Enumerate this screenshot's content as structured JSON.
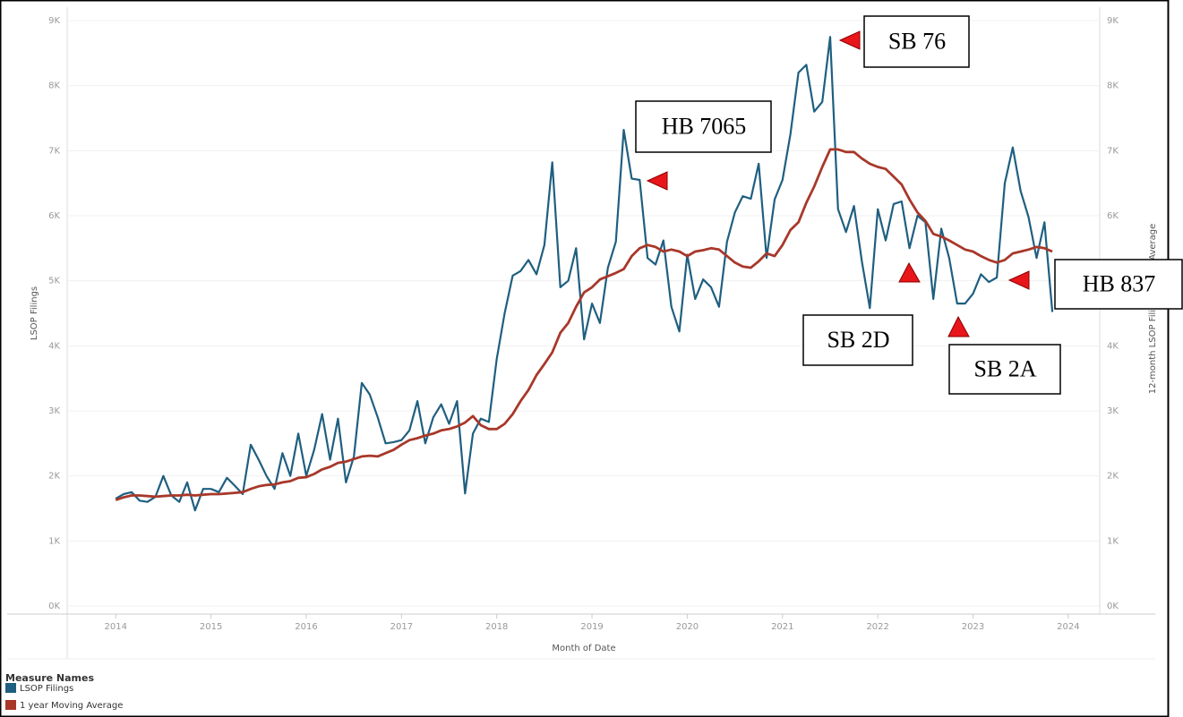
{
  "chart_data": {
    "type": "line",
    "y_label": "LSOP Filings",
    "y2_label": "12-month LSOP Filing Moving Average",
    "x_label": "Month of Date",
    "legend_title": "Measure Names",
    "legend": "bottom-left",
    "grid": true,
    "xlim": [
      2013.49,
      2024.33
    ],
    "xticks": [
      2014,
      2015,
      2016,
      2017,
      2018,
      2019,
      2020,
      2021,
      2022,
      2023,
      2024
    ],
    "ylim": [
      0,
      9000
    ],
    "yticks": [
      {
        "value": 0,
        "label": "0K"
      },
      {
        "value": 1000,
        "label": "1K"
      },
      {
        "value": 2000,
        "label": "2K"
      },
      {
        "value": 3000,
        "label": "3K"
      },
      {
        "value": 4000,
        "label": "4K"
      },
      {
        "value": 5000,
        "label": "5K"
      },
      {
        "value": 6000,
        "label": "6K"
      },
      {
        "value": 7000,
        "label": "7K"
      },
      {
        "value": 8000,
        "label": "8K"
      },
      {
        "value": 9000,
        "label": "9K"
      }
    ],
    "y2lim": [
      0,
      9000
    ],
    "y2ticks": [
      {
        "value": 0,
        "label": "0K"
      },
      {
        "value": 1000,
        "label": "1K"
      },
      {
        "value": 2000,
        "label": "2K"
      },
      {
        "value": 3000,
        "label": "3K"
      },
      {
        "value": 4000,
        "label": "4K"
      },
      {
        "value": 5000,
        "label": "5K"
      },
      {
        "value": 6000,
        "label": "6K"
      },
      {
        "value": 7000,
        "label": "7K"
      },
      {
        "value": 8000,
        "label": "8K"
      },
      {
        "value": 9000,
        "label": "9K"
      }
    ],
    "x": [
      2014,
      2014.083,
      2014.167,
      2014.25,
      2014.333,
      2014.417,
      2014.5,
      2014.583,
      2014.667,
      2014.75,
      2014.833,
      2014.917,
      2015,
      2015.083,
      2015.167,
      2015.25,
      2015.333,
      2015.417,
      2015.5,
      2015.583,
      2015.667,
      2015.75,
      2015.833,
      2015.917,
      2016,
      2016.083,
      2016.167,
      2016.25,
      2016.333,
      2016.417,
      2016.5,
      2016.583,
      2016.667,
      2016.75,
      2016.833,
      2016.917,
      2017,
      2017.083,
      2017.167,
      2017.25,
      2017.333,
      2017.417,
      2017.5,
      2017.583,
      2017.667,
      2017.75,
      2017.833,
      2017.917,
      2018,
      2018.083,
      2018.167,
      2018.25,
      2018.333,
      2018.417,
      2018.5,
      2018.583,
      2018.667,
      2018.75,
      2018.833,
      2018.917,
      2019,
      2019.083,
      2019.167,
      2019.25,
      2019.333,
      2019.417,
      2019.5,
      2019.583,
      2019.667,
      2019.75,
      2019.833,
      2019.917,
      2020,
      2020.083,
      2020.167,
      2020.25,
      2020.333,
      2020.417,
      2020.5,
      2020.583,
      2020.667,
      2020.75,
      2020.833,
      2020.917,
      2021,
      2021.083,
      2021.167,
      2021.25,
      2021.333,
      2021.417,
      2021.5,
      2021.583,
      2021.667,
      2021.75,
      2021.833,
      2021.917,
      2022,
      2022.083,
      2022.167,
      2022.25,
      2022.333,
      2022.417,
      2022.5,
      2022.583,
      2022.667,
      2022.75,
      2022.833,
      2022.917,
      2023,
      2023.083,
      2023.167,
      2023.25,
      2023.333,
      2023.417,
      2023.5,
      2023.583,
      2023.667,
      2023.75,
      2023.833
    ],
    "series": [
      {
        "name": "LSOP Filings",
        "color": "#1f5f80",
        "axis": "y",
        "values": [
          1650,
          1720,
          1750,
          1620,
          1600,
          1680,
          2000,
          1700,
          1600,
          1900,
          1470,
          1800,
          1800,
          1750,
          1970,
          1850,
          1720,
          2480,
          2250,
          2000,
          1800,
          2350,
          2000,
          2650,
          2000,
          2400,
          2950,
          2250,
          2880,
          1900,
          2300,
          3430,
          3250,
          2900,
          2500,
          2520,
          2550,
          2700,
          3150,
          2500,
          2900,
          3100,
          2800,
          3150,
          1730,
          2650,
          2880,
          2830,
          3800,
          4500,
          5080,
          5150,
          5320,
          5100,
          5550,
          6820,
          4900,
          5000,
          5500,
          4100,
          4650,
          4350,
          5200,
          5600,
          7320,
          6570,
          6550,
          5350,
          5250,
          5620,
          4600,
          4220,
          5400,
          4720,
          5020,
          4900,
          4600,
          5600,
          6050,
          6300,
          6260,
          6800,
          5350,
          6250,
          6550,
          7250,
          8200,
          8320,
          7600,
          7750,
          8750,
          6100,
          5750,
          6150,
          5300,
          4580,
          6100,
          5620,
          6180,
          6220,
          5500,
          6000,
          5900,
          4720,
          5800,
          5350,
          4650,
          4650,
          4800,
          5100,
          4980,
          5050,
          6500,
          7050,
          6380,
          5980,
          5350,
          5900,
          4520
        ]
      },
      {
        "name": "1 year Moving Average",
        "color": "#a8382a",
        "axis": "y2",
        "values": [
          1630,
          1670,
          1700,
          1700,
          1690,
          1680,
          1690,
          1700,
          1700,
          1710,
          1700,
          1710,
          1720,
          1720,
          1730,
          1740,
          1750,
          1800,
          1840,
          1860,
          1870,
          1900,
          1920,
          1970,
          1980,
          2030,
          2100,
          2140,
          2200,
          2220,
          2260,
          2300,
          2310,
          2300,
          2350,
          2400,
          2480,
          2550,
          2580,
          2620,
          2650,
          2700,
          2720,
          2760,
          2820,
          2920,
          2780,
          2720,
          2720,
          2800,
          2950,
          3150,
          3320,
          3550,
          3720,
          3900,
          4200,
          4350,
          4600,
          4820,
          4900,
          5020,
          5070,
          5120,
          5180,
          5380,
          5500,
          5550,
          5520,
          5450,
          5480,
          5450,
          5380,
          5450,
          5470,
          5500,
          5480,
          5380,
          5280,
          5220,
          5200,
          5300,
          5420,
          5380,
          5550,
          5780,
          5900,
          6200,
          6450,
          6750,
          7020,
          7020,
          6980,
          6980,
          6880,
          6800,
          6750,
          6720,
          6600,
          6480,
          6250,
          6050,
          5920,
          5720,
          5680,
          5620,
          5550,
          5480,
          5450,
          5380,
          5320,
          5280,
          5320,
          5420,
          5450,
          5480,
          5520,
          5500,
          5450
        ]
      }
    ],
    "annotations": [
      "HB 7065",
      "SB 76",
      "SB 2D",
      "SB 2A",
      "HB 837"
    ]
  }
}
